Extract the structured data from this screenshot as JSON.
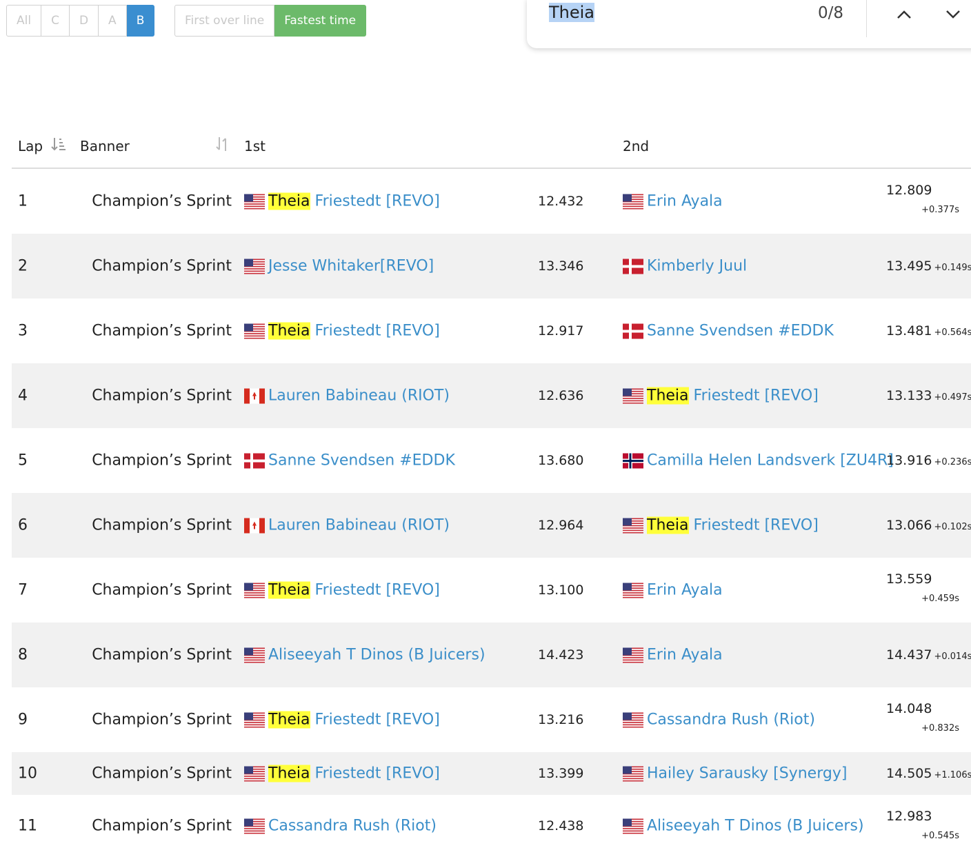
{
  "filters": {
    "classes": [
      "All",
      "C",
      "D",
      "A",
      "B"
    ],
    "modes": [
      "First over line",
      "Fastest time"
    ]
  },
  "find": {
    "query": "Theia",
    "count": "0/8"
  },
  "table": {
    "headers": [
      "Lap",
      "Banner",
      "1st",
      "2nd"
    ],
    "rows": [
      {
        "lap": "1",
        "banner": "Champion’s Sprint",
        "first": {
          "flag": "us",
          "mark": "Theia",
          "name": "Friestedt [REVO]"
        },
        "first_time": "12.432",
        "second": {
          "flag": "us",
          "name": "Erin Ayala"
        },
        "second_time": "12.809",
        "gap": "+0.377s"
      },
      {
        "lap": "2",
        "banner": "Champion’s Sprint",
        "first": {
          "flag": "us",
          "name": "Jesse Whitaker[REVO]"
        },
        "first_time": "13.346",
        "second": {
          "flag": "dk",
          "name": "Kimberly Juul"
        },
        "second_time": "13.495",
        "gap": "+0.149s"
      },
      {
        "lap": "3",
        "banner": "Champion’s Sprint",
        "first": {
          "flag": "us",
          "mark": "Theia",
          "name": "Friestedt [REVO]"
        },
        "first_time": "12.917",
        "second": {
          "flag": "dk",
          "name": "Sanne Svendsen #EDDK"
        },
        "second_time": "13.481",
        "gap": "+0.564s"
      },
      {
        "lap": "4",
        "banner": "Champion’s Sprint",
        "first": {
          "flag": "ca",
          "name": "Lauren Babineau (RIOT)"
        },
        "first_time": "12.636",
        "second": {
          "flag": "us",
          "mark": "Theia",
          "name": "Friestedt [REVO]"
        },
        "second_time": "13.133",
        "gap": "+0.497s"
      },
      {
        "lap": "5",
        "banner": "Champion’s Sprint",
        "first": {
          "flag": "dk",
          "name": "Sanne Svendsen #EDDK"
        },
        "first_time": "13.680",
        "second": {
          "flag": "no",
          "name": "Camilla Helen Landsverk [ZU4R]"
        },
        "second_time": "13.916",
        "gap": "+0.236s"
      },
      {
        "lap": "6",
        "banner": "Champion’s Sprint",
        "first": {
          "flag": "ca",
          "name": "Lauren Babineau (RIOT)"
        },
        "first_time": "12.964",
        "second": {
          "flag": "us",
          "mark": "Theia",
          "name": "Friestedt [REVO]"
        },
        "second_time": "13.066",
        "gap": "+0.102s"
      },
      {
        "lap": "7",
        "banner": "Champion’s Sprint",
        "first": {
          "flag": "us",
          "mark": "Theia",
          "name": "Friestedt [REVO]"
        },
        "first_time": "13.100",
        "second": {
          "flag": "us",
          "name": "Erin Ayala"
        },
        "second_time": "13.559",
        "gap": "+0.459s"
      },
      {
        "lap": "8",
        "banner": "Champion’s Sprint",
        "first": {
          "flag": "us",
          "name": "Aliseeyah T Dinos (B Juicers)"
        },
        "first_time": "14.423",
        "second": {
          "flag": "us",
          "name": "Erin Ayala"
        },
        "second_time": "14.437",
        "gap": "+0.014s"
      },
      {
        "lap": "9",
        "banner": "Champion’s Sprint",
        "first": {
          "flag": "us",
          "mark": "Theia",
          "name": "Friestedt [REVO]"
        },
        "first_time": "13.216",
        "second": {
          "flag": "us",
          "name": "Cassandra Rush (Riot)"
        },
        "second_time": "14.048",
        "gap": "+0.832s"
      },
      {
        "lap": "10",
        "banner": "Champion’s Sprint",
        "first": {
          "flag": "us",
          "mark": "Theia",
          "name": "Friestedt [REVO]"
        },
        "first_time": "13.399",
        "second": {
          "flag": "us",
          "name": "Hailey Sarausky [Synergy]"
        },
        "second_time": "14.505",
        "gap": "+1.106s"
      },
      {
        "lap": "11",
        "banner": "Champion’s Sprint",
        "first": {
          "flag": "us",
          "name": "Cassandra Rush (Riot)"
        },
        "first_time": "12.438",
        "second": {
          "flag": "us",
          "name": "Aliseeyah T Dinos (B Juicers)"
        },
        "second_time": "12.983",
        "gap": "+0.545s"
      }
    ]
  }
}
